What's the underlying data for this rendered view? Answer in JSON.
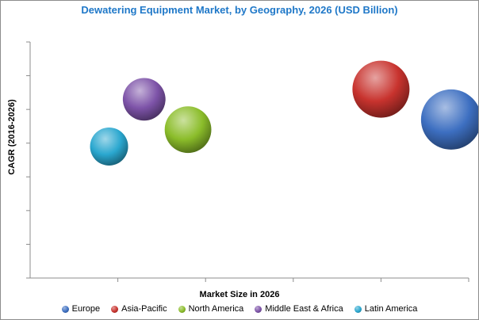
{
  "chart_data": {
    "type": "scatter",
    "title": "Dewatering Equipment Market, by Geography, 2026 (USD Billion)",
    "xlabel": "Market Size in 2026",
    "ylabel": "CAGR (2016-2026)",
    "xlim": [
      0,
      5
    ],
    "ylim": [
      0,
      7
    ],
    "x_ticks": 5,
    "y_ticks": 7,
    "grid": false,
    "legend_position": "bottom",
    "series": [
      {
        "name": "Europe",
        "x": 4.8,
        "y": 4.7,
        "size": 1.0,
        "color": "#3d6fc1"
      },
      {
        "name": "Asia-Pacific",
        "x": 4.0,
        "y": 5.6,
        "size": 0.9,
        "color": "#c8332e"
      },
      {
        "name": "North America",
        "x": 1.8,
        "y": 4.4,
        "size": 0.6,
        "color": "#8bbd2a"
      },
      {
        "name": "Middle East & Africa",
        "x": 1.3,
        "y": 5.3,
        "size": 0.5,
        "color": "#7d53a8"
      },
      {
        "name": "Latin America",
        "x": 0.9,
        "y": 3.9,
        "size": 0.4,
        "color": "#2aa7cf"
      }
    ]
  }
}
